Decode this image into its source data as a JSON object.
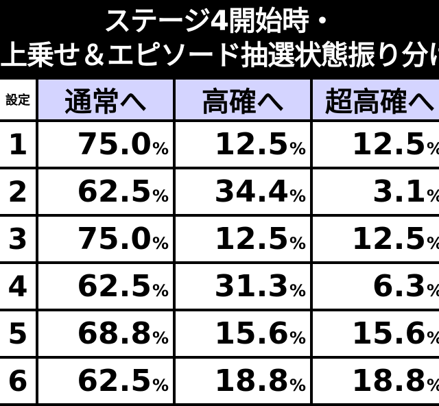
{
  "title": {
    "line1": "ステージ4開始時・",
    "line2": "上乗せ＆エピソード抽選状態振り分け"
  },
  "table": {
    "headers": [
      "設定",
      "通常へ",
      "高確へ",
      "超高確へ"
    ],
    "percent_sign": "%",
    "rows": [
      {
        "setting": "1",
        "normal": "75.0",
        "high": "12.5",
        "super_high": "12.5"
      },
      {
        "setting": "2",
        "normal": "62.5",
        "high": "34.4",
        "super_high": "3.1"
      },
      {
        "setting": "3",
        "normal": "75.0",
        "high": "12.5",
        "super_high": "12.5"
      },
      {
        "setting": "4",
        "normal": "62.5",
        "high": "31.3",
        "super_high": "6.3"
      },
      {
        "setting": "5",
        "normal": "68.8",
        "high": "15.6",
        "super_high": "15.6"
      },
      {
        "setting": "6",
        "normal": "62.5",
        "high": "18.8",
        "super_high": "18.8"
      }
    ]
  },
  "colors": {
    "background": "#000000",
    "header_bg": "#d4d4ff",
    "cell_bg": "#ffffff",
    "title_text": "#ffffff"
  }
}
